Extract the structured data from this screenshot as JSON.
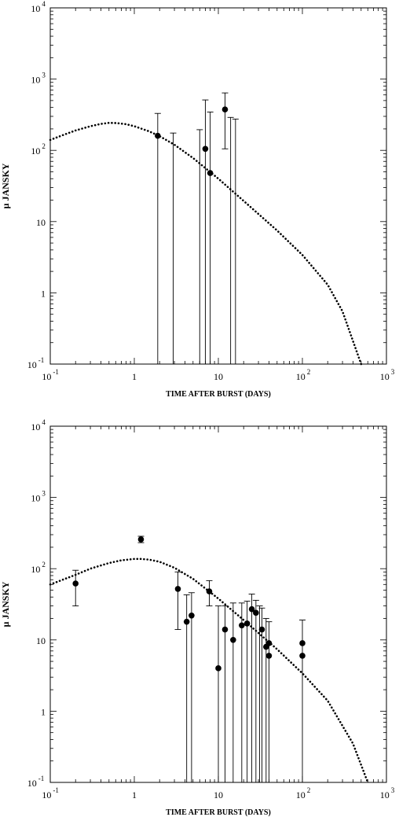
{
  "chart_data": [
    {
      "type": "scatter",
      "xlabel": "TIME AFTER BURST (DAYS)",
      "ylabel": "µ JANSKY",
      "xscale": "log",
      "yscale": "log",
      "xlim": [
        0.1,
        1000
      ],
      "ylim": [
        0.1,
        10000
      ],
      "x_ticks": [
        {
          "value": 0.1,
          "base": "10",
          "exp": "-1"
        },
        {
          "value": 1,
          "base": "1",
          "exp": ""
        },
        {
          "value": 10,
          "base": "10",
          "exp": ""
        },
        {
          "value": 100,
          "base": "10",
          "exp": "2"
        },
        {
          "value": 1000,
          "base": "10",
          "exp": "3"
        }
      ],
      "y_ticks": [
        {
          "value": 0.1,
          "base": "10",
          "exp": "-1"
        },
        {
          "value": 1,
          "base": "1",
          "exp": ""
        },
        {
          "value": 10,
          "base": "10",
          "exp": ""
        },
        {
          "value": 100,
          "base": "10",
          "exp": "2"
        },
        {
          "value": 1000,
          "base": "10",
          "exp": "3"
        },
        {
          "value": 10000,
          "base": "10",
          "exp": "4"
        }
      ],
      "points": [
        {
          "x": 1.9,
          "y": 160
        },
        {
          "x": 7.0,
          "y": 105
        },
        {
          "x": 8.0,
          "y": 48
        },
        {
          "x": 12.0,
          "y": 375
        }
      ],
      "errorbars": [
        {
          "x": 1.9,
          "low": 0.1,
          "high": 330
        },
        {
          "x": 2.9,
          "low": 0.1,
          "high": 175
        },
        {
          "x": 6.0,
          "low": 0.1,
          "high": 195
        },
        {
          "x": 7.0,
          "low": 0.1,
          "high": 510
        },
        {
          "x": 8.0,
          "low": 0.1,
          "high": 345
        },
        {
          "x": 12.0,
          "low": 105,
          "high": 640
        },
        {
          "x": 14.0,
          "low": 0.1,
          "high": 290
        },
        {
          "x": 16.0,
          "low": 0.1,
          "high": 275
        }
      ],
      "model_curve": {
        "style": "dotted",
        "x": [
          0.1,
          0.15,
          0.2,
          0.3,
          0.4,
          0.5,
          0.6,
          0.8,
          1,
          1.5,
          2,
          3,
          5,
          10,
          20,
          50,
          100,
          200,
          300,
          500
        ],
        "y": [
          140,
          168,
          190,
          218,
          235,
          243,
          242,
          233,
          218,
          185,
          158,
          120,
          78,
          40,
          19.5,
          7.5,
          3.4,
          1.3,
          0.55,
          0.1
        ]
      }
    },
    {
      "type": "scatter",
      "xlabel": "TIME AFTER BURST (DAYS)",
      "ylabel": "µ JANSKY",
      "xscale": "log",
      "yscale": "log",
      "xlim": [
        0.1,
        1000
      ],
      "ylim": [
        0.1,
        10000
      ],
      "x_ticks": [
        {
          "value": 0.1,
          "base": "10",
          "exp": "-1"
        },
        {
          "value": 1,
          "base": "1",
          "exp": ""
        },
        {
          "value": 10,
          "base": "10",
          "exp": ""
        },
        {
          "value": 100,
          "base": "10",
          "exp": "2"
        },
        {
          "value": 1000,
          "base": "10",
          "exp": "3"
        }
      ],
      "y_ticks": [
        {
          "value": 0.1,
          "base": "10",
          "exp": "-1"
        },
        {
          "value": 1,
          "base": "1",
          "exp": ""
        },
        {
          "value": 10,
          "base": "10",
          "exp": ""
        },
        {
          "value": 100,
          "base": "10",
          "exp": "2"
        },
        {
          "value": 1000,
          "base": "10",
          "exp": "3"
        },
        {
          "value": 10000,
          "base": "10",
          "exp": "4"
        }
      ],
      "points": [
        {
          "x": 0.2,
          "y": 62
        },
        {
          "x": 1.2,
          "y": 258
        },
        {
          "x": 3.3,
          "y": 52
        },
        {
          "x": 4.2,
          "y": 18
        },
        {
          "x": 4.8,
          "y": 22
        },
        {
          "x": 7.8,
          "y": 48
        },
        {
          "x": 10.0,
          "y": 4
        },
        {
          "x": 12.0,
          "y": 14
        },
        {
          "x": 15.0,
          "y": 10
        },
        {
          "x": 19.0,
          "y": 16
        },
        {
          "x": 22.0,
          "y": 17
        },
        {
          "x": 25.0,
          "y": 27
        },
        {
          "x": 28.0,
          "y": 24
        },
        {
          "x": 33.0,
          "y": 14
        },
        {
          "x": 37.0,
          "y": 8
        },
        {
          "x": 40.0,
          "y": 9
        },
        {
          "x": 40.0,
          "y": 6
        },
        {
          "x": 100.0,
          "y": 9
        },
        {
          "x": 100.0,
          "y": 6
        }
      ],
      "errorbars": [
        {
          "x": 0.2,
          "low": 30,
          "high": 95
        },
        {
          "x": 1.2,
          "low": 232,
          "high": 285
        },
        {
          "x": 3.3,
          "low": 14,
          "high": 90
        },
        {
          "x": 4.2,
          "low": 0.1,
          "high": 43
        },
        {
          "x": 4.8,
          "low": 0.1,
          "high": 46
        },
        {
          "x": 7.8,
          "low": 30,
          "high": 68
        },
        {
          "x": 10.0,
          "low": 0.1,
          "high": 30
        },
        {
          "x": 12.0,
          "low": 0.1,
          "high": 30
        },
        {
          "x": 15.0,
          "low": 0.1,
          "high": 33
        },
        {
          "x": 19.0,
          "low": 0.1,
          "high": 33
        },
        {
          "x": 22.0,
          "low": 0.1,
          "high": 35
        },
        {
          "x": 25.0,
          "low": 0.1,
          "high": 44
        },
        {
          "x": 28.0,
          "low": 0.1,
          "high": 36
        },
        {
          "x": 31.0,
          "low": 0.1,
          "high": 30
        },
        {
          "x": 33.0,
          "low": 0.1,
          "high": 28
        },
        {
          "x": 37.0,
          "low": 0.1,
          "high": 20
        },
        {
          "x": 40.0,
          "low": 0.1,
          "high": 18
        },
        {
          "x": 100.0,
          "low": 0.1,
          "high": 19
        }
      ],
      "model_curve": {
        "style": "dotted",
        "x": [
          0.1,
          0.2,
          0.3,
          0.5,
          0.7,
          1,
          1.2,
          1.5,
          2,
          3,
          5,
          10,
          20,
          50,
          100,
          200,
          400,
          600
        ],
        "y": [
          60,
          82,
          100,
          120,
          131,
          137,
          137,
          134,
          125,
          103,
          72,
          38,
          19,
          7.4,
          3.4,
          1.4,
          0.35,
          0.1
        ]
      }
    }
  ]
}
